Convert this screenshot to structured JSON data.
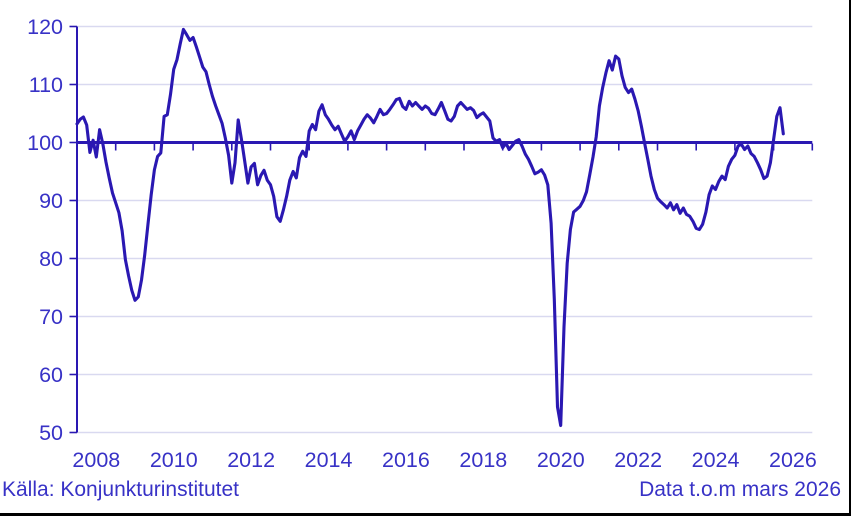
{
  "page": {
    "background": "#ffffff",
    "window_border_color": "#000000"
  },
  "footer": {
    "source": "Källa: Konjunkturinstitutet",
    "note": "Data t.o.m mars 2026"
  },
  "chart_data": {
    "type": "line",
    "title": "",
    "xlabel": "",
    "ylabel": "",
    "grid": true,
    "legend": "none",
    "baseline": 100,
    "ylim": [
      50,
      120
    ],
    "xlim": [
      2007.5,
      2026.5
    ],
    "y_ticks": [
      50,
      60,
      70,
      80,
      90,
      100,
      110,
      120
    ],
    "x_tick_labels": [
      "2008",
      "2010",
      "2012",
      "2014",
      "2016",
      "2018",
      "2020",
      "2022",
      "2024",
      "2026"
    ],
    "x_tick_years": [
      2008,
      2010,
      2012,
      2014,
      2016,
      2018,
      2020,
      2022,
      2024,
      2026
    ],
    "x_minor_ticks": {
      "start": 2008.5,
      "end": 2026.5,
      "step": 1
    },
    "series": [
      {
        "name": "indicator",
        "x_start": 2007.5,
        "x_step_years": 0.083333,
        "values": [
          103.2,
          104.0,
          104.4,
          103.0,
          98.3,
          100.4,
          97.5,
          102.2,
          99.8,
          96.6,
          93.9,
          91.3,
          89.6,
          87.9,
          84.8,
          79.8,
          77.0,
          74.5,
          72.8,
          73.4,
          76.3,
          80.6,
          85.8,
          91.0,
          95.3,
          97.6,
          98.2,
          104.5,
          104.8,
          108.3,
          112.6,
          114.3,
          117.0,
          119.5,
          118.6,
          117.6,
          118.1,
          116.5,
          114.8,
          113.0,
          112.2,
          110.0,
          108.0,
          106.3,
          104.8,
          103.3,
          100.8,
          97.8,
          93.0,
          96.5,
          103.9,
          100.5,
          96.8,
          93.0,
          95.8,
          96.4,
          92.7,
          94.3,
          95.2,
          93.5,
          92.7,
          90.7,
          87.2,
          86.4,
          88.4,
          90.7,
          93.5,
          95.0,
          93.9,
          97.4,
          98.5,
          97.6,
          102.0,
          103.1,
          102.2,
          105.4,
          106.5,
          104.8,
          104.0,
          103.0,
          102.2,
          102.8,
          101.5,
          100.2,
          101.0,
          102.0,
          100.5,
          102.0,
          103.0,
          104.0,
          104.8,
          104.2,
          103.4,
          104.5,
          105.7,
          104.8,
          105.0,
          105.7,
          106.5,
          107.4,
          107.6,
          106.2,
          105.7,
          107.1,
          106.3,
          106.9,
          106.3,
          105.7,
          106.3,
          105.9,
          105.0,
          104.8,
          105.8,
          106.9,
          105.5,
          104.0,
          103.7,
          104.5,
          106.3,
          106.9,
          106.3,
          105.7,
          106.0,
          105.5,
          104.3,
          104.8,
          105.1,
          104.4,
          103.7,
          100.8,
          100.2,
          100.5,
          99.1,
          99.9,
          98.8,
          99.5,
          100.2,
          100.5,
          99.4,
          98.0,
          97.1,
          95.9,
          94.6,
          94.9,
          95.3,
          94.4,
          92.7,
          86.1,
          73.0,
          54.4,
          51.2,
          68.2,
          79.2,
          85.0,
          88.0,
          88.5,
          89.0,
          90.0,
          91.5,
          94.5,
          97.5,
          101.0,
          106.3,
          109.5,
          112.0,
          114.1,
          112.5,
          114.9,
          114.4,
          111.5,
          109.5,
          108.6,
          109.2,
          107.5,
          105.5,
          102.8,
          99.9,
          97.1,
          94.2,
          91.9,
          90.4,
          89.8,
          89.3,
          88.7,
          89.6,
          88.4,
          89.3,
          87.8,
          88.7,
          87.6,
          87.3,
          86.4,
          85.2,
          85.0,
          85.9,
          88.0,
          91.0,
          92.5,
          91.9,
          93.3,
          94.2,
          93.6,
          95.9,
          97.1,
          97.8,
          99.4,
          99.7,
          98.8,
          99.4,
          98.1,
          97.6,
          96.5,
          95.3,
          93.8,
          94.2,
          96.5,
          100.5,
          104.5,
          106.0,
          101.5
        ]
      }
    ],
    "colors": {
      "line": "#2a18b2",
      "baseline": "#2a18b2",
      "axis": "#2a18b2",
      "grid": "#d9d9f0",
      "tick_text": "#3832c6"
    }
  }
}
